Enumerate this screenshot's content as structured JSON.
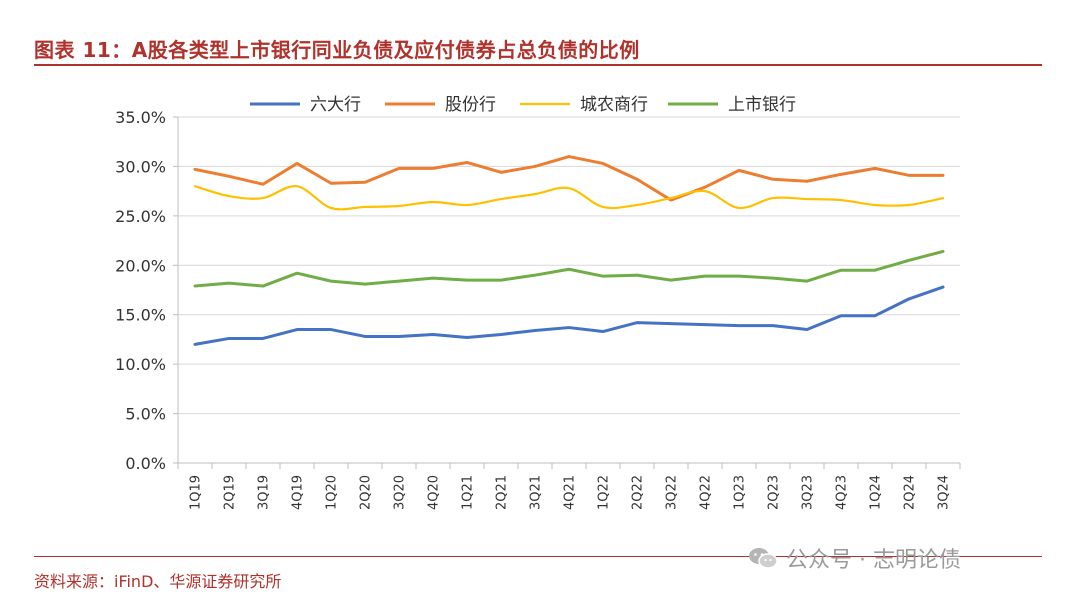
{
  "header": {
    "title": "图表 11：A股各类型上市银行同业负债及应付债券占总负债的比例"
  },
  "footer": {
    "source": "资料来源：iFinD、华源证券研究所"
  },
  "watermark": {
    "text": "公众号 · 志明论债",
    "icon": "wechat-icon"
  },
  "chart_data": {
    "type": "line",
    "categories": [
      "1Q19",
      "2Q19",
      "3Q19",
      "4Q19",
      "1Q20",
      "2Q20",
      "3Q20",
      "4Q20",
      "1Q21",
      "2Q21",
      "3Q21",
      "4Q21",
      "1Q22",
      "2Q22",
      "3Q22",
      "4Q22",
      "1Q23",
      "2Q23",
      "3Q23",
      "4Q23",
      "1Q24",
      "2Q24",
      "3Q24"
    ],
    "y_ticks": [
      "0.0%",
      "5.0%",
      "10.0%",
      "15.0%",
      "20.0%",
      "25.0%",
      "30.0%",
      "35.0%"
    ],
    "ylim": [
      0,
      35
    ],
    "grid": true,
    "legend_position": "top",
    "series": [
      {
        "name": "六大行",
        "color": "#4472c4",
        "smooth": false,
        "values": [
          12.0,
          12.6,
          12.6,
          13.5,
          13.5,
          12.8,
          12.8,
          13.0,
          12.7,
          13.0,
          13.4,
          13.7,
          13.3,
          14.2,
          14.1,
          14.0,
          13.9,
          13.9,
          13.5,
          14.9,
          14.9,
          16.6,
          17.8
        ]
      },
      {
        "name": "股份行",
        "color": "#ed7d31",
        "smooth": false,
        "values": [
          29.7,
          29.0,
          28.2,
          30.3,
          28.3,
          28.4,
          29.8,
          29.8,
          30.4,
          29.4,
          30.0,
          31.0,
          30.3,
          28.7,
          26.6,
          27.9,
          29.6,
          28.7,
          28.5,
          29.2,
          29.8,
          29.1,
          29.1
        ]
      },
      {
        "name": "城农商行",
        "color": "#ffc000",
        "smooth": true,
        "values": [
          28.0,
          27.0,
          26.8,
          28.0,
          25.8,
          25.9,
          26.0,
          26.4,
          26.1,
          26.7,
          27.2,
          27.8,
          25.9,
          26.1,
          26.8,
          27.5,
          25.8,
          26.8,
          26.7,
          26.6,
          26.1,
          26.1,
          26.8
        ]
      },
      {
        "name": "上市银行",
        "color": "#70ad47",
        "smooth": false,
        "values": [
          17.9,
          18.2,
          17.9,
          19.2,
          18.4,
          18.1,
          18.4,
          18.7,
          18.5,
          18.5,
          19.0,
          19.6,
          18.9,
          19.0,
          18.5,
          18.9,
          18.9,
          18.7,
          18.4,
          19.5,
          19.5,
          20.5,
          21.4
        ]
      }
    ]
  }
}
